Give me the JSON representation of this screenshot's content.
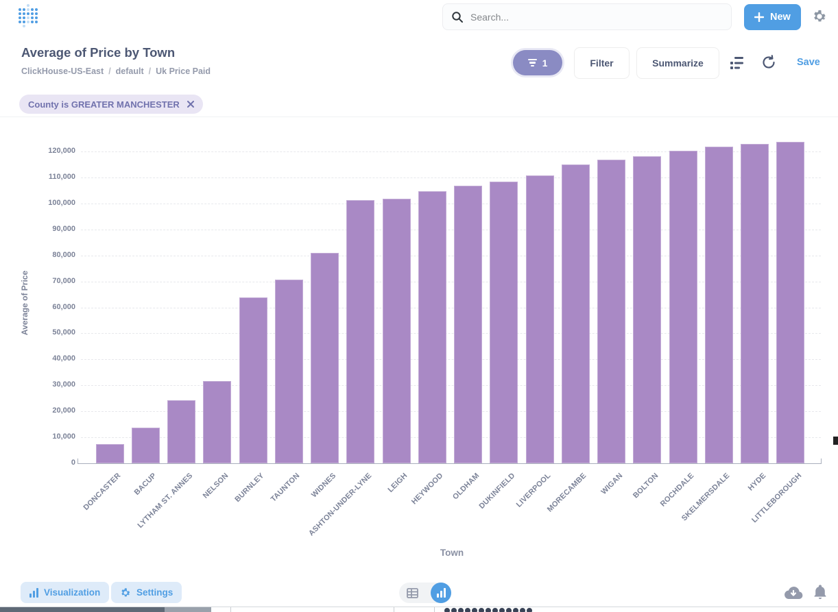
{
  "header": {
    "search_placeholder": "Search...",
    "new_label": "New"
  },
  "title_bar": {
    "title": "Average of Price by Town",
    "breadcrumb": {
      "database": "ClickHouse-US-East",
      "separator": "/",
      "schema": "default",
      "table": "Uk Price Paid"
    },
    "filter_count": "1",
    "filter_label": "Filter",
    "summarize_label": "Summarize",
    "save_label": "Save"
  },
  "filter_chips": [
    {
      "label": "County is GREATER MANCHESTER"
    }
  ],
  "chart_data": {
    "type": "bar",
    "title": "Average of Price by Town",
    "xlabel": "Town",
    "ylabel": "Average of Price",
    "ylim": [
      0,
      130000
    ],
    "y_ticks": [
      0,
      10000,
      20000,
      30000,
      40000,
      50000,
      60000,
      70000,
      80000,
      90000,
      100000,
      110000,
      120000
    ],
    "grid": true,
    "legend": false,
    "bar_color": "#A989C5",
    "categories": [
      "DONCASTER",
      "BACUP",
      "LYTHAM ST. ANNES",
      "NELSON",
      "BURNLEY",
      "TAUNTON",
      "WIDNES",
      "ASHTON-UNDER-LYNE",
      "LEIGH",
      "HEYWOOD",
      "OLDHAM",
      "DUKINFIELD",
      "LIVERPOOL",
      "MORECAMBE",
      "WIGAN",
      "BOLTON",
      "ROCHDALE",
      "SKELMERSDALE",
      "HYDE",
      "LITTLEBOROUGH"
    ],
    "values": [
      7500,
      13600,
      24200,
      31700,
      63800,
      70600,
      80900,
      101200,
      101900,
      104800,
      106700,
      108300,
      110900,
      114900,
      116800,
      118200,
      120200,
      121900,
      122800,
      123700
    ]
  },
  "footer": {
    "visualization_label": "Visualization",
    "settings_label": "Settings"
  },
  "colors": {
    "brand_blue": "#509EE3",
    "bar_purple": "#A989C5",
    "filter_pill": "#8A8BC3",
    "chip_bg": "#E9E5F4",
    "chip_text": "#7172AD",
    "text_dark": "#4C5773",
    "text_gray": "#949AAB",
    "axis_text": "#7C8398"
  }
}
